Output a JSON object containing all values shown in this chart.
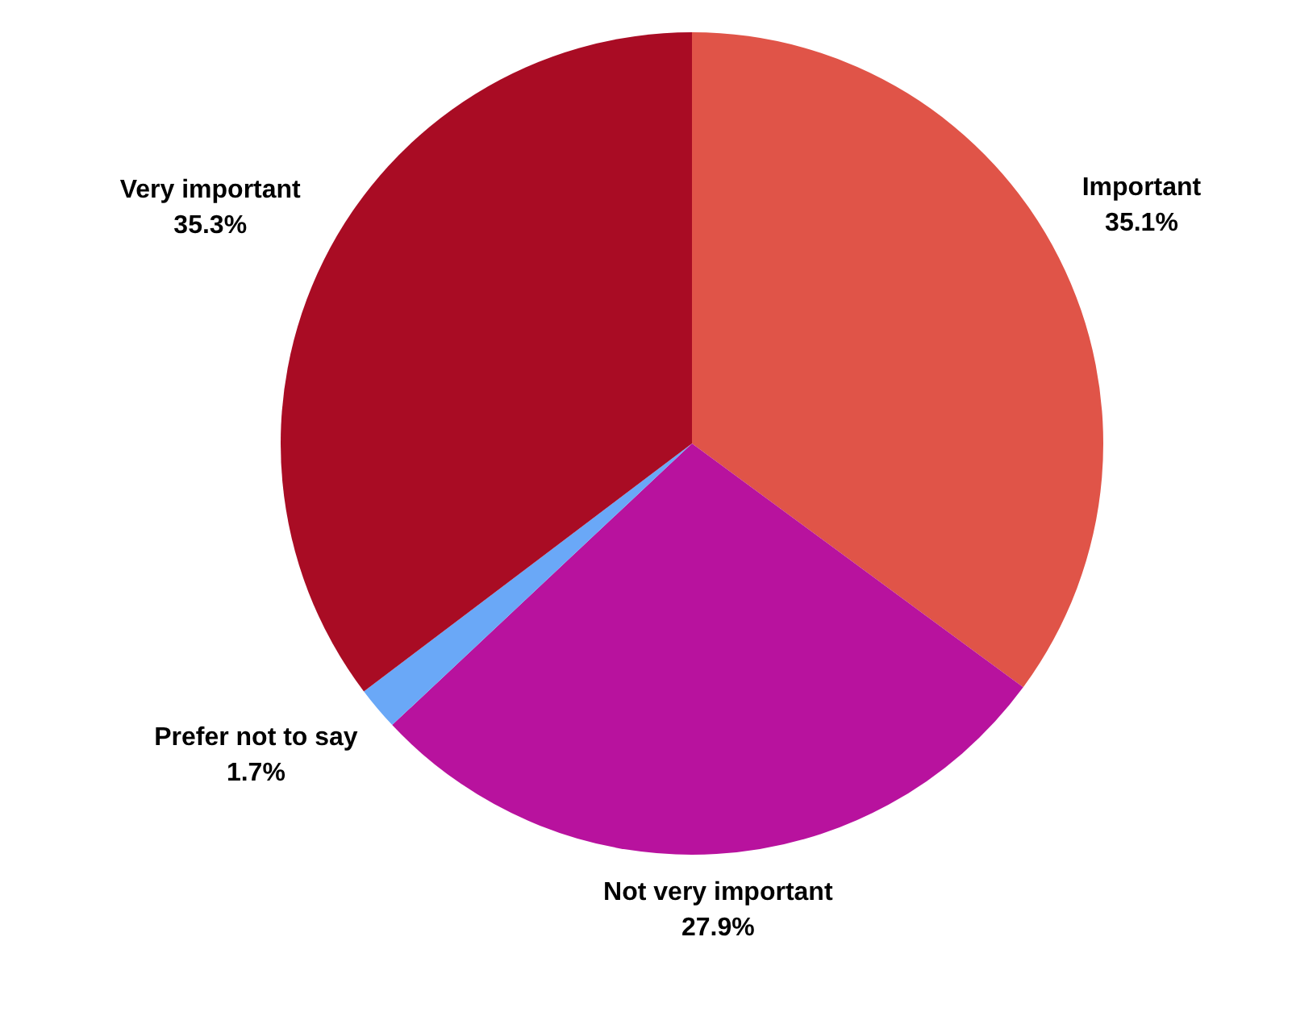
{
  "chart_data": {
    "type": "pie",
    "categories": [
      "Important",
      "Not very important",
      "Prefer not to say",
      "Very important"
    ],
    "values": [
      35.1,
      27.9,
      1.7,
      35.3
    ],
    "value_labels": [
      "35.1%",
      "27.9%",
      "1.7%",
      "35.3%"
    ],
    "colors": [
      "#e05448",
      "#b8129e",
      "#6aa8f7",
      "#a90c24"
    ]
  }
}
